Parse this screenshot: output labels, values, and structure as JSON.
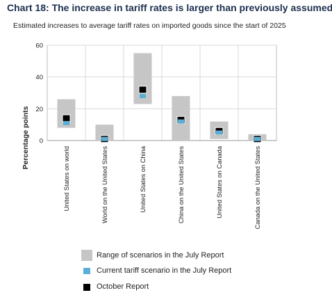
{
  "title": "Chart 18: The increase in tariff rates is larger than previously assumed",
  "subtitle": "Estimated increases to average tariff rates on imported goods since the start of 2025",
  "chart_data": {
    "type": "range-dot",
    "ylabel": "Percentage points",
    "ylim": [
      0,
      60
    ],
    "yticks": [
      0,
      20,
      40,
      60
    ],
    "grid": true,
    "legend_position": "bottom",
    "categories": [
      "United States on world",
      "World on the United States",
      "United States on China",
      "China on the United States",
      "United States on Canada",
      "Canada on the United States"
    ],
    "series": [
      {
        "name": "Range of scenarios in the July Report",
        "type": "range",
        "color": "#c6c6c6",
        "low": [
          8,
          0,
          23,
          0,
          1,
          0
        ],
        "high": [
          26,
          10,
          55,
          28,
          12,
          4
        ]
      },
      {
        "name": "Current tariff scenario in the July Report",
        "type": "marker",
        "color": "#5bafd6",
        "values": [
          11,
          1,
          28,
          12,
          5,
          1
        ]
      },
      {
        "name": "October Report",
        "type": "marker",
        "color": "#000000",
        "values": [
          14,
          1,
          32,
          13,
          6,
          1
        ]
      }
    ]
  }
}
